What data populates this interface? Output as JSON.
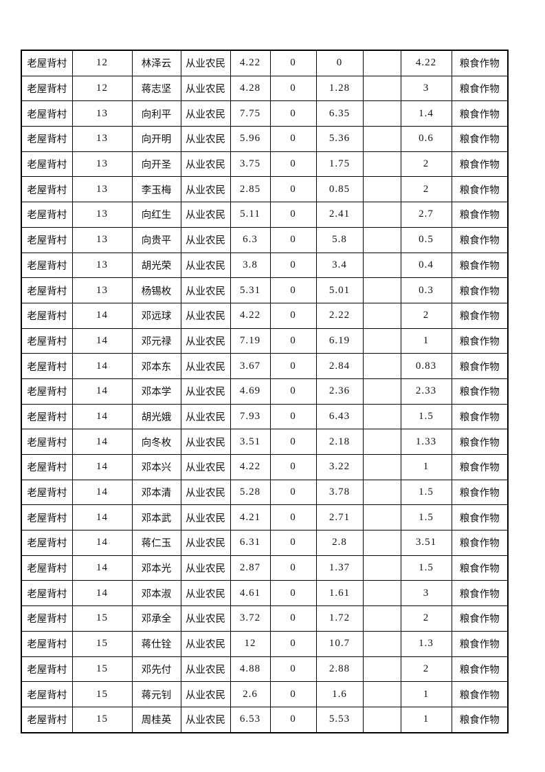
{
  "table": {
    "rows": [
      [
        "老屋背村",
        "12",
        "林泽云",
        "从业农民",
        "4.22",
        "0",
        "0",
        "",
        "4.22",
        "粮食作物"
      ],
      [
        "老屋背村",
        "12",
        "蒋志坚",
        "从业农民",
        "4.28",
        "0",
        "1.28",
        "",
        "3",
        "粮食作物"
      ],
      [
        "老屋背村",
        "13",
        "向利平",
        "从业农民",
        "7.75",
        "0",
        "6.35",
        "",
        "1.4",
        "粮食作物"
      ],
      [
        "老屋背村",
        "13",
        "向开明",
        "从业农民",
        "5.96",
        "0",
        "5.36",
        "",
        "0.6",
        "粮食作物"
      ],
      [
        "老屋背村",
        "13",
        "向开圣",
        "从业农民",
        "3.75",
        "0",
        "1.75",
        "",
        "2",
        "粮食作物"
      ],
      [
        "老屋背村",
        "13",
        "李玉梅",
        "从业农民",
        "2.85",
        "0",
        "0.85",
        "",
        "2",
        "粮食作物"
      ],
      [
        "老屋背村",
        "13",
        "向红生",
        "从业农民",
        "5.11",
        "0",
        "2.41",
        "",
        "2.7",
        "粮食作物"
      ],
      [
        "老屋背村",
        "13",
        "向贵平",
        "从业农民",
        "6.3",
        "0",
        "5.8",
        "",
        "0.5",
        "粮食作物"
      ],
      [
        "老屋背村",
        "13",
        "胡光荣",
        "从业农民",
        "3.8",
        "0",
        "3.4",
        "",
        "0.4",
        "粮食作物"
      ],
      [
        "老屋背村",
        "13",
        "杨锡枚",
        "从业农民",
        "5.31",
        "0",
        "5.01",
        "",
        "0.3",
        "粮食作物"
      ],
      [
        "老屋背村",
        "14",
        "邓远球",
        "从业农民",
        "4.22",
        "0",
        "2.22",
        "",
        "2",
        "粮食作物"
      ],
      [
        "老屋背村",
        "14",
        "邓元禄",
        "从业农民",
        "7.19",
        "0",
        "6.19",
        "",
        "1",
        "粮食作物"
      ],
      [
        "老屋背村",
        "14",
        "邓本东",
        "从业农民",
        "3.67",
        "0",
        "2.84",
        "",
        "0.83",
        "粮食作物"
      ],
      [
        "老屋背村",
        "14",
        "邓本学",
        "从业农民",
        "4.69",
        "0",
        "2.36",
        "",
        "2.33",
        "粮食作物"
      ],
      [
        "老屋背村",
        "14",
        "胡光娥",
        "从业农民",
        "7.93",
        "0",
        "6.43",
        "",
        "1.5",
        "粮食作物"
      ],
      [
        "老屋背村",
        "14",
        "向冬枚",
        "从业农民",
        "3.51",
        "0",
        "2.18",
        "",
        "1.33",
        "粮食作物"
      ],
      [
        "老屋背村",
        "14",
        "邓本兴",
        "从业农民",
        "4.22",
        "0",
        "3.22",
        "",
        "1",
        "粮食作物"
      ],
      [
        "老屋背村",
        "14",
        "邓本清",
        "从业农民",
        "5.28",
        "0",
        "3.78",
        "",
        "1.5",
        "粮食作物"
      ],
      [
        "老屋背村",
        "14",
        "邓本武",
        "从业农民",
        "4.21",
        "0",
        "2.71",
        "",
        "1.5",
        "粮食作物"
      ],
      [
        "老屋背村",
        "14",
        "蒋仁玉",
        "从业农民",
        "6.31",
        "0",
        "2.8",
        "",
        "3.51",
        "粮食作物"
      ],
      [
        "老屋背村",
        "14",
        "邓本光",
        "从业农民",
        "2.87",
        "0",
        "1.37",
        "",
        "1.5",
        "粮食作物"
      ],
      [
        "老屋背村",
        "14",
        "邓本淑",
        "从业农民",
        "4.61",
        "0",
        "1.61",
        "",
        "3",
        "粮食作物"
      ],
      [
        "老屋背村",
        "15",
        "邓承全",
        "从业农民",
        "3.72",
        "0",
        "1.72",
        "",
        "2",
        "粮食作物"
      ],
      [
        "老屋背村",
        "15",
        "蒋仕铨",
        "从业农民",
        "12",
        "0",
        "10.7",
        "",
        "1.3",
        "粮食作物"
      ],
      [
        "老屋背村",
        "15",
        "邓先付",
        "从业农民",
        "4.88",
        "0",
        "2.88",
        "",
        "2",
        "粮食作物"
      ],
      [
        "老屋背村",
        "15",
        "蒋元钊",
        "从业农民",
        "2.6",
        "0",
        "1.6",
        "",
        "1",
        "粮食作物"
      ],
      [
        "老屋背村",
        "15",
        "周桂英",
        "从业农民",
        "6.53",
        "0",
        "5.53",
        "",
        "1",
        "粮食作物"
      ]
    ]
  }
}
